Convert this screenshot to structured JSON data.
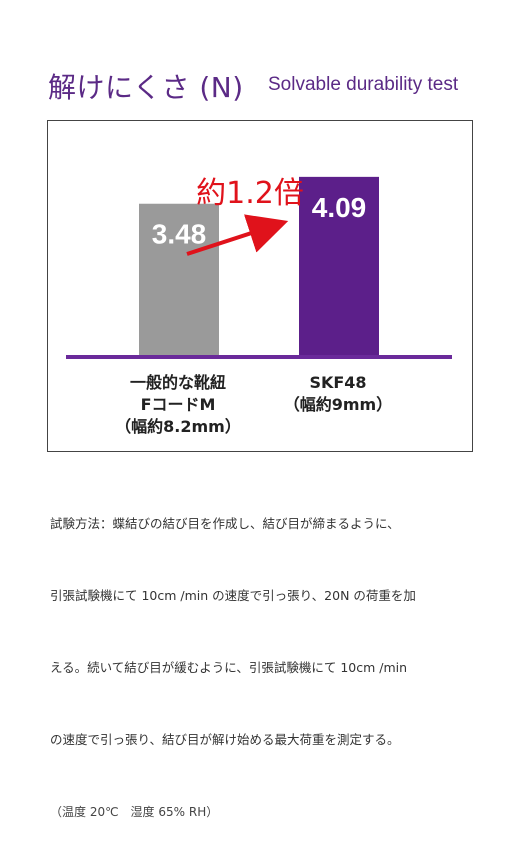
{
  "header": {
    "title_jp": "解けにくさ (N)",
    "title_en": "Solvable durability test"
  },
  "chart_data": {
    "type": "bar",
    "categories": [
      "一般的な靴紐\nFコードM\n（幅約8.2mm）",
      "SKF48\n（幅約9mm）"
    ],
    "values": [
      3.48,
      4.09
    ],
    "value_labels": [
      "3.48",
      "4.09"
    ],
    "bar_colors": [
      "#9a9a9a",
      "#5c1f8a"
    ],
    "baseline_color": "#6a2a9a",
    "annotation": "約1.2倍",
    "annotation_color": "#e0121b",
    "ylim": [
      0,
      4.7
    ],
    "title": "",
    "xlabel": "",
    "ylabel": "",
    "grid": false
  },
  "description": {
    "lines": [
      "試験方法：蝶結びの結び目を作成し、結び目が締まるように、",
      "引張試験機にて 10cm /min の速度で引っ張り、20N の荷重を加",
      "える。続いて結び目が緩むように、引張試験機にて 10cm /min",
      "の速度で引っ張り、結び目が解け始める最大荷重を測定する。"
    ],
    "note": "（温度 20℃　湿度 65% RH）"
  }
}
